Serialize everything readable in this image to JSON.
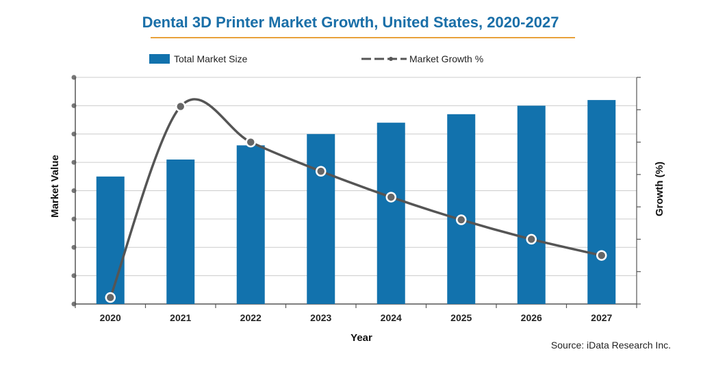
{
  "chart_data": {
    "type": "bar+line",
    "title": "Dental 3D Printer Market Growth, United States, 2020-2027",
    "xlabel": "Year",
    "ylabel": "Market Value",
    "y2label": "Growth (%)",
    "source": "Source: iData Research Inc.",
    "categories": [
      "2020",
      "2021",
      "2022",
      "2023",
      "2024",
      "2025",
      "2026",
      "2027"
    ],
    "ylim": [
      0,
      8
    ],
    "y2lim": [
      0,
      7
    ],
    "grid": true,
    "legend_position": "top",
    "series": [
      {
        "name": "Total Market Size",
        "type": "bar",
        "color": "#1272ad",
        "values": [
          4.5,
          5.1,
          5.6,
          6.0,
          6.4,
          6.7,
          7.0,
          7.2
        ]
      },
      {
        "name": "Market Growth %",
        "type": "line",
        "color": "#555555",
        "values": [
          0.2,
          6.1,
          5.0,
          4.1,
          3.3,
          2.6,
          2.0,
          1.5
        ]
      }
    ],
    "colors": {
      "title": "#1a6fa8",
      "title_underline": "#e8a13a",
      "grid": "#cccccc",
      "axis": "#555555",
      "tick_label": "#222222"
    }
  }
}
